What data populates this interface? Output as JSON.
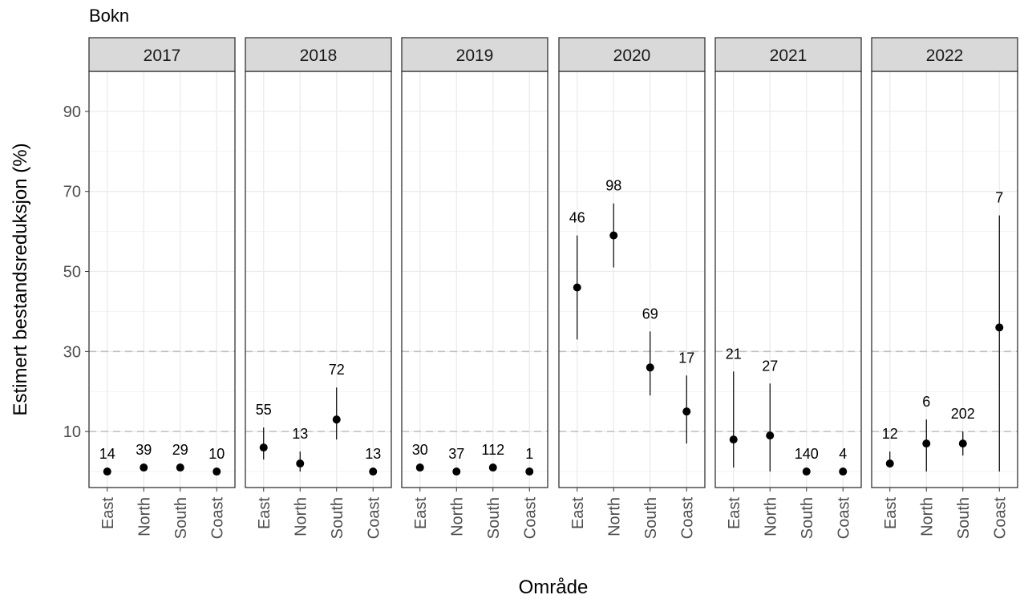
{
  "chart_data": {
    "type": "scatter",
    "title": "Bokn",
    "xlabel": "Område",
    "ylabel": "Estimert bestandsreduksjon (%)",
    "categories": [
      "East",
      "North",
      "South",
      "Coast"
    ],
    "yticks": [
      10,
      30,
      50,
      70,
      90
    ],
    "ylim": [
      -4,
      100
    ],
    "reference_lines": [
      10,
      30
    ],
    "grid": true,
    "panels": [
      {
        "name": "2017",
        "values": [
          0,
          1,
          1,
          0
        ],
        "lower": [
          0,
          1,
          1,
          0
        ],
        "upper": [
          0,
          1,
          1,
          0
        ],
        "labels": [
          "14",
          "39",
          "29",
          "10"
        ]
      },
      {
        "name": "2018",
        "values": [
          6,
          2,
          13,
          0
        ],
        "lower": [
          3,
          0,
          8,
          0
        ],
        "upper": [
          11,
          5,
          21,
          0
        ],
        "labels": [
          "55",
          "13",
          "72",
          "13"
        ]
      },
      {
        "name": "2019",
        "values": [
          1,
          0,
          1,
          0
        ],
        "lower": [
          1,
          0,
          1,
          0
        ],
        "upper": [
          1,
          0,
          1,
          0
        ],
        "labels": [
          "30",
          "37",
          "112",
          "1"
        ]
      },
      {
        "name": "2020",
        "values": [
          46,
          59,
          26,
          15
        ],
        "lower": [
          33,
          51,
          19,
          7
        ],
        "upper": [
          59,
          67,
          35,
          24
        ],
        "labels": [
          "46",
          "98",
          "69",
          "17"
        ]
      },
      {
        "name": "2021",
        "values": [
          8,
          9,
          0,
          0
        ],
        "lower": [
          1,
          0,
          0,
          0
        ],
        "upper": [
          25,
          22,
          0,
          0
        ],
        "labels": [
          "21",
          "27",
          "140",
          "4"
        ]
      },
      {
        "name": "2022",
        "values": [
          2,
          7,
          7,
          36
        ],
        "lower": [
          1,
          0,
          4,
          0
        ],
        "upper": [
          5,
          13,
          10,
          64
        ],
        "labels": [
          "12",
          "6",
          "202",
          "7"
        ]
      }
    ]
  }
}
